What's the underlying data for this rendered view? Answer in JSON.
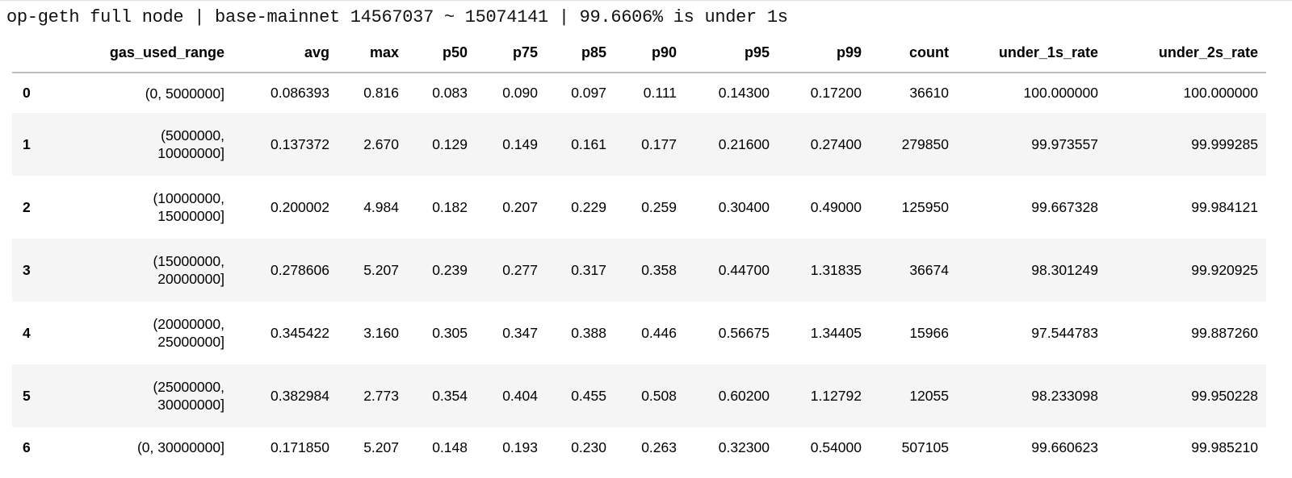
{
  "title": "op-geth full node | base-mainnet 14567037 ~ 15074141 | 99.6606% is under 1s",
  "table": {
    "columns": [
      "",
      "gas_used_range",
      "avg",
      "max",
      "p50",
      "p75",
      "p85",
      "p90",
      "p95",
      "p99",
      "count",
      "under_1s_rate",
      "under_2s_rate"
    ],
    "rows": [
      [
        "0",
        "(0, 5000000]",
        "0.086393",
        "0.816",
        "0.083",
        "0.090",
        "0.097",
        "0.111",
        "0.14300",
        "0.17200",
        "36610",
        "100.000000",
        "100.000000"
      ],
      [
        "1",
        "(5000000, 10000000]",
        "0.137372",
        "2.670",
        "0.129",
        "0.149",
        "0.161",
        "0.177",
        "0.21600",
        "0.27400",
        "279850",
        "99.973557",
        "99.999285"
      ],
      [
        "2",
        "(10000000, 15000000]",
        "0.200002",
        "4.984",
        "0.182",
        "0.207",
        "0.229",
        "0.259",
        "0.30400",
        "0.49000",
        "125950",
        "99.667328",
        "99.984121"
      ],
      [
        "3",
        "(15000000, 20000000]",
        "0.278606",
        "5.207",
        "0.239",
        "0.277",
        "0.317",
        "0.358",
        "0.44700",
        "1.31835",
        "36674",
        "98.301249",
        "99.920925"
      ],
      [
        "4",
        "(20000000, 25000000]",
        "0.345422",
        "3.160",
        "0.305",
        "0.347",
        "0.388",
        "0.446",
        "0.56675",
        "1.34405",
        "15966",
        "97.544783",
        "99.887260"
      ],
      [
        "5",
        "(25000000, 30000000]",
        "0.382984",
        "2.773",
        "0.354",
        "0.404",
        "0.455",
        "0.508",
        "0.60200",
        "1.12792",
        "12055",
        "98.233098",
        "99.950228"
      ],
      [
        "6",
        "(0, 30000000]",
        "0.171850",
        "5.207",
        "0.148",
        "0.193",
        "0.230",
        "0.263",
        "0.32300",
        "0.54000",
        "507105",
        "99.660623",
        "99.985210"
      ]
    ]
  }
}
